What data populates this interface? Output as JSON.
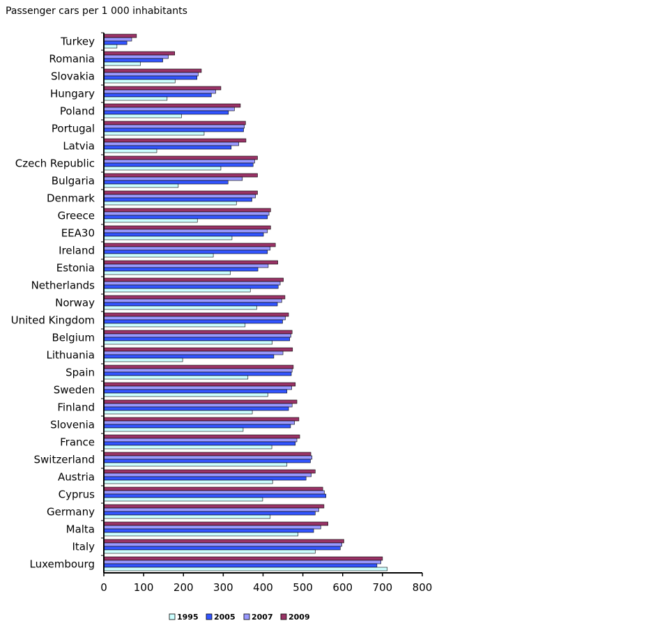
{
  "chart_data": {
    "type": "bar",
    "orientation": "horizontal",
    "title": "Passenger cars per 1 000 inhabitants",
    "xlabel": "",
    "ylabel": "",
    "xlim": [
      0,
      800
    ],
    "x_ticks": [
      0,
      100,
      200,
      300,
      400,
      500,
      600,
      700,
      800
    ],
    "grid": false,
    "legend_position": "bottom",
    "categories": [
      "Turkey",
      "Romania",
      "Slovakia",
      "Hungary",
      "Poland",
      "Portugal",
      "Latvia",
      "Czech Republic",
      "Bulgaria",
      "Denmark",
      "Greece",
      "EEA30",
      "Ireland",
      "Estonia",
      "Netherlands",
      "Norway",
      "United Kingdom",
      "Belgium",
      "Lithuania",
      "Spain",
      "Sweden",
      "Finland",
      "Slovenia",
      "France",
      "Switzerland",
      "Austria",
      "Cyprus",
      "Germany",
      "Malta",
      "Italy",
      "Luxembourg"
    ],
    "series": [
      {
        "name": "1995",
        "color": "#ccffff",
        "values": [
          33,
          92,
          179,
          159,
          195,
          252,
          133,
          294,
          187,
          333,
          235,
          322,
          275,
          318,
          368,
          384,
          355,
          423,
          198,
          362,
          412,
          373,
          350,
          422,
          460,
          424,
          399,
          418,
          488,
          531,
          712
        ]
      },
      {
        "name": "2005",
        "color": "#3355ff",
        "values": [
          58,
          148,
          234,
          270,
          313,
          351,
          320,
          375,
          312,
          372,
          411,
          401,
          411,
          387,
          438,
          436,
          449,
          467,
          427,
          471,
          460,
          464,
          469,
          481,
          519,
          508,
          558,
          531,
          527,
          594,
          686
        ]
      },
      {
        "name": "2007",
        "color": "#9999ff",
        "values": [
          70,
          162,
          237,
          281,
          328,
          353,
          339,
          379,
          348,
          381,
          415,
          411,
          418,
          413,
          443,
          447,
          456,
          470,
          450,
          473,
          472,
          473,
          479,
          485,
          523,
          521,
          554,
          540,
          545,
          598,
          696
        ]
      },
      {
        "name": "2009",
        "color": "#993366",
        "values": [
          82,
          178,
          245,
          294,
          343,
          356,
          357,
          386,
          386,
          386,
          419,
          419,
          431,
          437,
          451,
          455,
          464,
          473,
          474,
          476,
          481,
          485,
          490,
          492,
          520,
          531,
          550,
          553,
          563,
          603,
          700
        ]
      }
    ]
  }
}
